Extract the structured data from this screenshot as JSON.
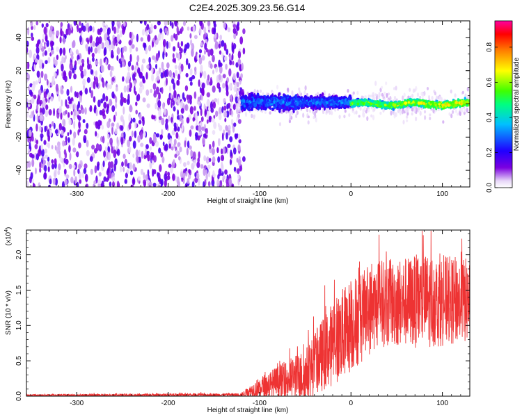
{
  "title": "C2E4.2025.309.23.56.G14",
  "chart_data": [
    {
      "type": "heatmap",
      "name": "spectrogram",
      "xlabel": "Height of straight line (km)",
      "ylabel": "Frequency (Hz)",
      "xlim": [
        -355,
        130
      ],
      "ylim": [
        -50,
        50
      ],
      "xticks": [
        -300,
        -200,
        -100,
        0,
        100
      ],
      "yticks": [
        -40,
        -20,
        0,
        20,
        40
      ],
      "colorbar": {
        "label": "Normalized spectral amplitude",
        "range": [
          0.0,
          0.95
        ],
        "ticks": [
          "0.0",
          "0.2",
          "0.4",
          "0.6",
          "0.8"
        ],
        "colormap": [
          "#ffffff",
          "#e8d8f8",
          "#7b00e0",
          "#2000ff",
          "#00c0ff",
          "#00ff80",
          "#40ff00",
          "#ffff00",
          "#ff8000",
          "#ff0000",
          "#ff00a0"
        ]
      },
      "regions": [
        {
          "x_from": -355,
          "x_to": -120,
          "description_value": "broadband noise",
          "freq_from": -50,
          "freq_to": 50,
          "amplitude": 0.1
        },
        {
          "x_from": -120,
          "x_to": 0,
          "freq_center": 1,
          "freq_halfwidth": 8,
          "amplitude": 0.3
        },
        {
          "x_from": 0,
          "x_to": 130,
          "freq_center": 0,
          "freq_halfwidth": 5,
          "amplitude": 0.55
        }
      ]
    },
    {
      "type": "line",
      "name": "snr",
      "xlabel": "Height of straight line (km)",
      "ylabel": "SNR (10 * v/v)",
      "yscale_label": "(x10",
      "yscale_exp": "4",
      "xlim": [
        -355,
        130
      ],
      "ylim": [
        0,
        2.35
      ],
      "xticks": [
        -300,
        -200,
        -100,
        0,
        100
      ],
      "yticks": [
        "0.0",
        "0.5",
        "1.0",
        "1.5",
        "2.0"
      ],
      "color": "#ee3333",
      "envelope": [
        {
          "x": -355,
          "mean": 0.01,
          "spread": 0.02
        },
        {
          "x": -120,
          "mean": 0.02,
          "spread": 0.03
        },
        {
          "x": -100,
          "mean": 0.12,
          "spread": 0.2
        },
        {
          "x": -50,
          "mean": 0.3,
          "spread": 0.5
        },
        {
          "x": -20,
          "mean": 0.75,
          "spread": 0.8
        },
        {
          "x": 0,
          "mean": 1.0,
          "spread": 0.9
        },
        {
          "x": 30,
          "mean": 1.3,
          "spread": 0.8
        },
        {
          "x": 80,
          "mean": 1.35,
          "spread": 0.9
        },
        {
          "x": 130,
          "mean": 1.35,
          "spread": 0.8
        }
      ]
    }
  ]
}
